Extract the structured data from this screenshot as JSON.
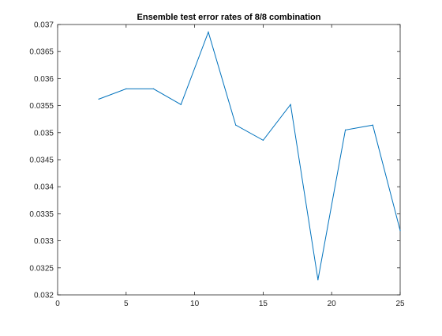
{
  "chart_data": {
    "type": "line",
    "title": "Ensemble test error rates of 8/8 combination",
    "xlabel": "",
    "ylabel": "",
    "xlim": [
      0,
      25
    ],
    "ylim": [
      0.032,
      0.037
    ],
    "xticks": [
      0,
      5,
      10,
      15,
      20,
      25
    ],
    "xtick_labels": [
      "0",
      "5",
      "10",
      "15",
      "20",
      "25"
    ],
    "yticks": [
      0.032,
      0.0325,
      0.033,
      0.0335,
      0.034,
      0.0345,
      0.035,
      0.0355,
      0.036,
      0.0365,
      0.037
    ],
    "ytick_labels": [
      "0.032",
      "0.0325",
      "0.033",
      "0.0335",
      "0.034",
      "0.0345",
      "0.035",
      "0.0355",
      "0.036",
      "0.0365",
      "0.037"
    ],
    "grid": false,
    "legend": "none",
    "series": [
      {
        "color": "#0072BD",
        "x": [
          3,
          5,
          7,
          9,
          11,
          13,
          15,
          17,
          19,
          21,
          23,
          25
        ],
        "y": [
          0.03562,
          0.03581,
          0.03581,
          0.03552,
          0.03686,
          0.03514,
          0.03486,
          0.03552,
          0.03228,
          0.03505,
          0.03514,
          0.03319
        ]
      }
    ]
  }
}
